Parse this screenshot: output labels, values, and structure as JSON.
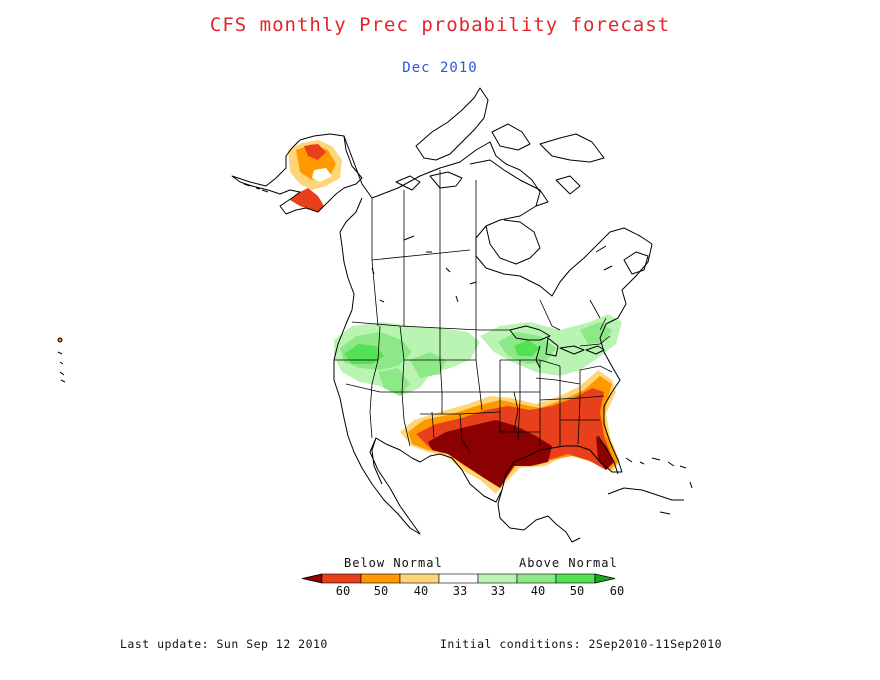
{
  "title": "CFS monthly Prec probability forecast",
  "subtitle": "Dec 2010",
  "legend": {
    "below_label": "Below Normal",
    "above_label": "Above Normal",
    "colors": [
      "#8b0000",
      "#e8401c",
      "#ff9900",
      "#ffd57a",
      "#ffffff",
      "#b9f4b3",
      "#8de888",
      "#54e254",
      "#1ea81e"
    ],
    "ticks": [
      "60",
      "50",
      "40",
      "33",
      "33",
      "40",
      "50",
      "60"
    ]
  },
  "footer": {
    "last_update": "Last update: Sun Sep 12 2010",
    "initial_conditions": "Initial conditions: 2Sep2010-11Sep2010"
  }
}
